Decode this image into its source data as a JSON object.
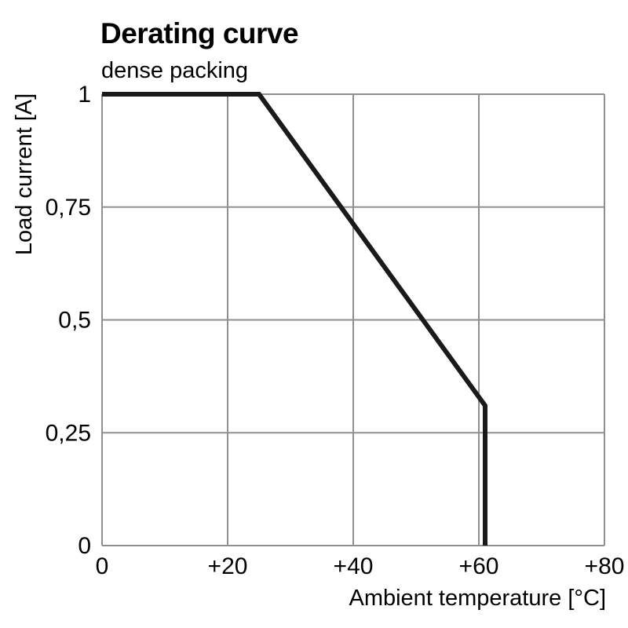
{
  "header": {
    "title": "Derating curve",
    "subtitle": "dense packing"
  },
  "colors": {
    "curve": "#1a1a1a",
    "grid": "#8f8f8f",
    "text": "#000000",
    "background": "#ffffff"
  },
  "chart_data": {
    "type": "line",
    "title": "Derating curve",
    "subtitle": "dense packing",
    "xlabel": "Ambient temperature [°C]",
    "ylabel": "Load current [A]",
    "xlim": [
      0,
      80
    ],
    "ylim": [
      0,
      1
    ],
    "grid": true,
    "legend": "none",
    "x_ticks": [
      {
        "value": 0,
        "label": "0"
      },
      {
        "value": 20,
        "label": "+20"
      },
      {
        "value": 40,
        "label": "+40"
      },
      {
        "value": 60,
        "label": "+60"
      },
      {
        "value": 80,
        "label": "+80"
      }
    ],
    "y_ticks": [
      {
        "value": 0,
        "label": "0"
      },
      {
        "value": 0.25,
        "label": "0,25"
      },
      {
        "value": 0.5,
        "label": "0,5"
      },
      {
        "value": 0.75,
        "label": "0,75"
      },
      {
        "value": 1,
        "label": "1"
      }
    ],
    "series": [
      {
        "name": "derating-curve-dense-packing",
        "points": [
          [
            0,
            1
          ],
          [
            25,
            1
          ],
          [
            61,
            0.31
          ],
          [
            61,
            0
          ]
        ]
      }
    ]
  }
}
